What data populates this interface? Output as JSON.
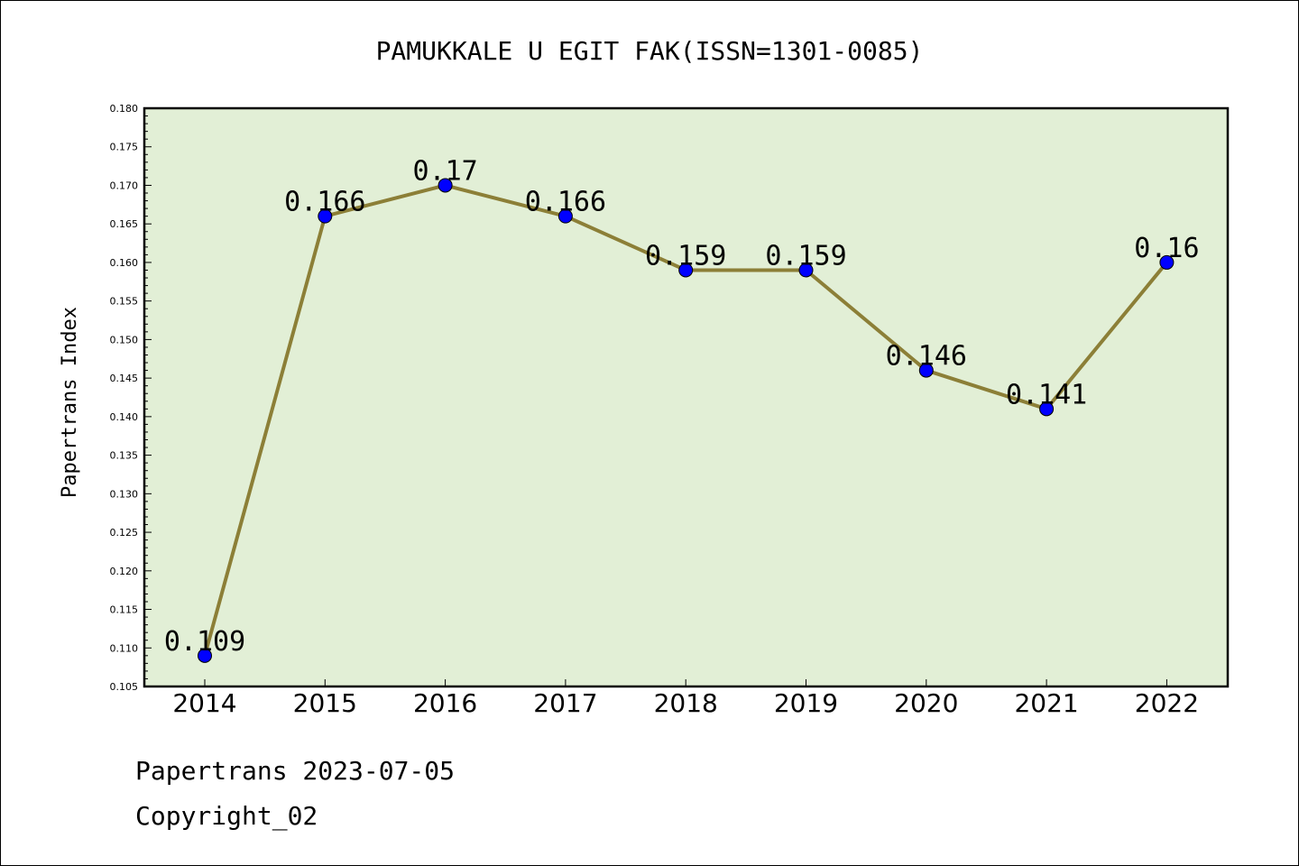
{
  "chart_data": {
    "type": "line",
    "title": "PAMUKKALE U EGIT FAK(ISSN=1301-0085)",
    "xlabel": "",
    "ylabel": "Papertrans Index",
    "categories": [
      "2014",
      "2015",
      "2016",
      "2017",
      "2018",
      "2019",
      "2020",
      "2021",
      "2022"
    ],
    "values": [
      0.109,
      0.166,
      0.17,
      0.166,
      0.159,
      0.159,
      0.146,
      0.141,
      0.16
    ],
    "data_labels": [
      "0.109",
      "0.166",
      "0.17",
      "0.166",
      "0.159",
      "0.159",
      "0.146",
      "0.141",
      "0.16"
    ],
    "ylim": [
      0.105,
      0.18
    ],
    "yticks": [
      "0.105",
      "0.110",
      "0.115",
      "0.120",
      "0.125",
      "0.130",
      "0.135",
      "0.140",
      "0.145",
      "0.150",
      "0.155",
      "0.160",
      "0.165",
      "0.170",
      "0.175",
      "0.180"
    ],
    "grid": false,
    "legend": "none",
    "colors": {
      "plot_background": "#e2efd6",
      "line": "#8c7f37",
      "marker": "#0000ff"
    }
  },
  "footer": {
    "line1": "Papertrans 2023-07-05",
    "line2": "Copyright_02"
  }
}
